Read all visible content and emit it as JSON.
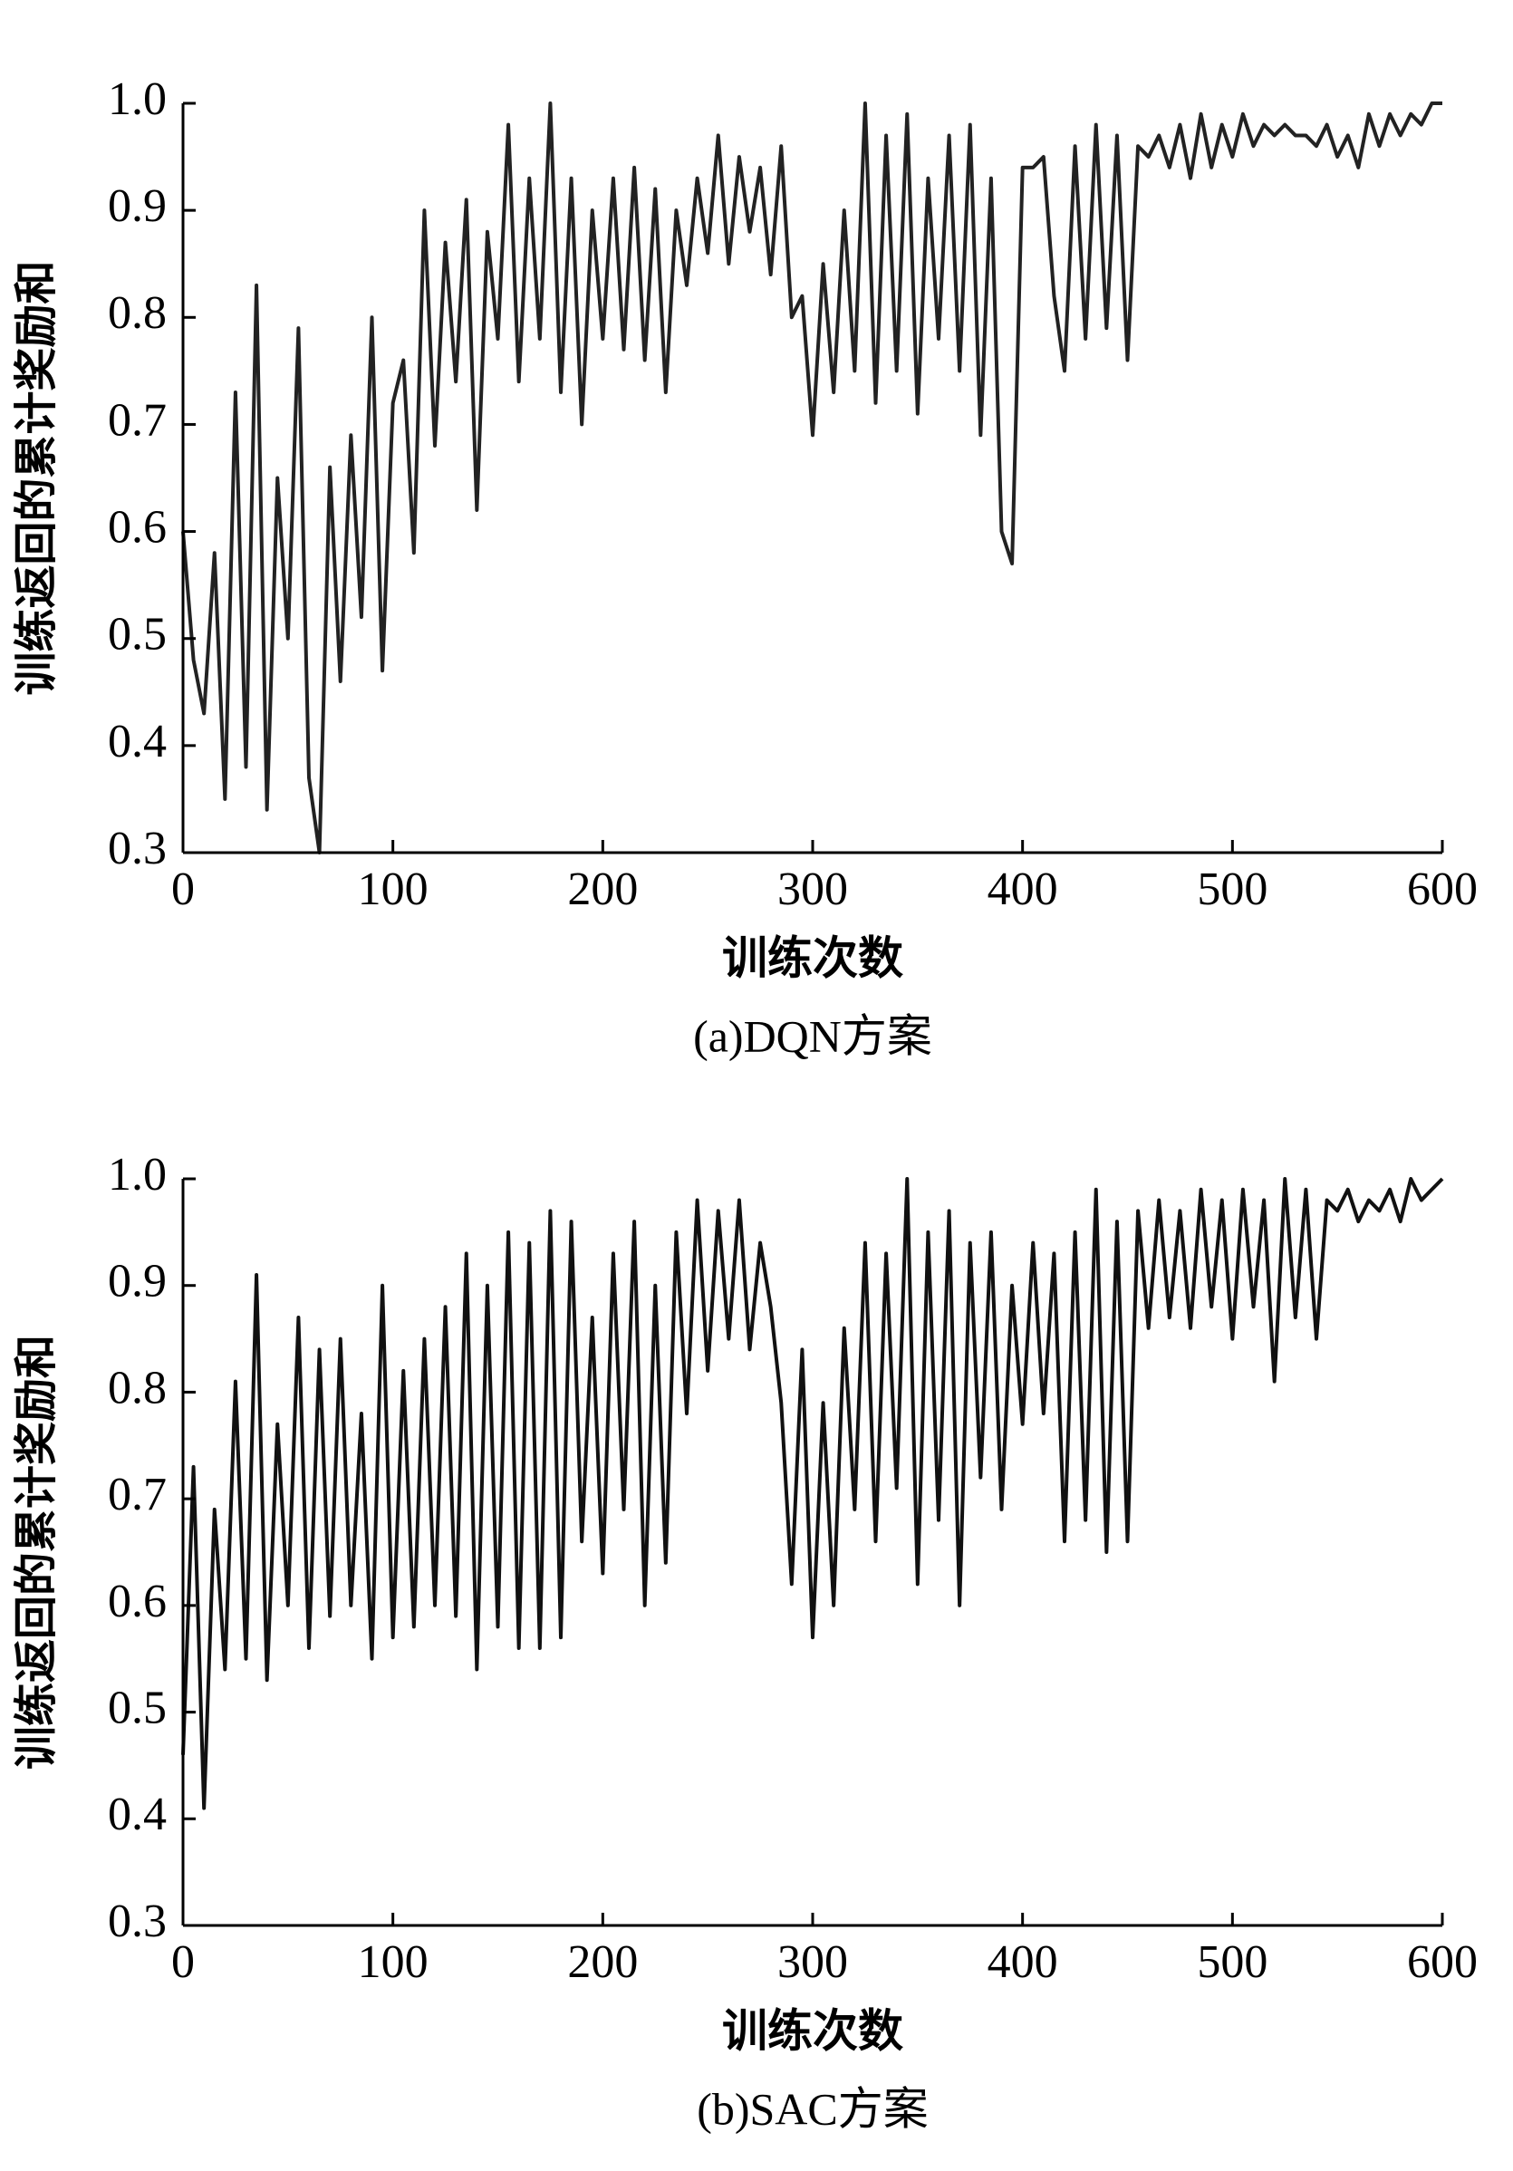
{
  "chart_data": [
    {
      "type": "line",
      "xlabel": "训练次数",
      "ylabel": "训练返回的累计奖励和",
      "caption": "(a)DQN方案",
      "color": "#222222",
      "xlim": [
        0,
        600
      ],
      "ylim": [
        0.3,
        1.0
      ],
      "xticks": [
        0,
        100,
        200,
        300,
        400,
        500,
        600
      ],
      "yticks": [
        0.3,
        0.4,
        0.5,
        0.6,
        0.7,
        0.8,
        0.9,
        {
          "value": 1.0,
          "label": "1.0"
        }
      ],
      "x": [
        0,
        5,
        10,
        15,
        20,
        25,
        30,
        35,
        40,
        45,
        50,
        55,
        60,
        65,
        70,
        75,
        80,
        85,
        90,
        95,
        100,
        105,
        110,
        115,
        120,
        125,
        130,
        135,
        140,
        145,
        150,
        155,
        160,
        165,
        170,
        175,
        180,
        185,
        190,
        195,
        200,
        205,
        210,
        215,
        220,
        225,
        230,
        235,
        240,
        245,
        250,
        255,
        260,
        265,
        270,
        275,
        280,
        285,
        290,
        295,
        300,
        305,
        310,
        315,
        320,
        325,
        330,
        335,
        340,
        345,
        350,
        355,
        360,
        365,
        370,
        375,
        380,
        385,
        390,
        395,
        400,
        405,
        410,
        415,
        420,
        425,
        430,
        435,
        440,
        445,
        450,
        455,
        460,
        465,
        470,
        475,
        480,
        485,
        490,
        495,
        500,
        505,
        510,
        515,
        520,
        525,
        530,
        535,
        540,
        545,
        550,
        555,
        560,
        565,
        570,
        575,
        580,
        585,
        590,
        595,
        600
      ],
      "values": [
        0.6,
        0.48,
        0.43,
        0.58,
        0.35,
        0.73,
        0.38,
        0.83,
        0.34,
        0.65,
        0.5,
        0.79,
        0.37,
        0.3,
        0.66,
        0.46,
        0.69,
        0.52,
        0.8,
        0.47,
        0.72,
        0.76,
        0.58,
        0.9,
        0.68,
        0.87,
        0.74,
        0.91,
        0.62,
        0.88,
        0.78,
        0.98,
        0.74,
        0.93,
        0.78,
        1.0,
        0.73,
        0.93,
        0.7,
        0.9,
        0.78,
        0.93,
        0.77,
        0.94,
        0.76,
        0.92,
        0.73,
        0.9,
        0.83,
        0.93,
        0.86,
        0.97,
        0.85,
        0.95,
        0.88,
        0.94,
        0.84,
        0.96,
        0.8,
        0.82,
        0.69,
        0.85,
        0.73,
        0.9,
        0.75,
        1.0,
        0.72,
        0.97,
        0.75,
        0.99,
        0.71,
        0.93,
        0.78,
        0.97,
        0.75,
        0.98,
        0.69,
        0.93,
        0.6,
        0.57,
        0.94,
        0.94,
        0.95,
        0.82,
        0.75,
        0.96,
        0.78,
        0.98,
        0.79,
        0.97,
        0.76,
        0.96,
        0.95,
        0.97,
        0.94,
        0.98,
        0.93,
        0.99,
        0.94,
        0.98,
        0.95,
        0.99,
        0.96,
        0.98,
        0.97,
        0.98,
        0.97,
        0.97,
        0.96,
        0.98,
        0.95,
        0.97,
        0.94,
        0.99,
        0.96,
        0.99,
        0.97,
        0.99,
        0.98,
        1.0,
        1.0
      ]
    },
    {
      "type": "line",
      "xlabel": "训练次数",
      "ylabel": "训练返回的累计奖励和",
      "caption": "(b)SAC方案",
      "color": "#111111",
      "xlim": [
        0,
        600
      ],
      "ylim": [
        0.3,
        1.0
      ],
      "xticks": [
        0,
        100,
        200,
        300,
        400,
        500,
        600
      ],
      "yticks": [
        0.3,
        0.4,
        0.5,
        0.6,
        0.7,
        0.8,
        0.9,
        {
          "value": 1.0,
          "label": "1.0"
        }
      ],
      "x": [
        0,
        5,
        10,
        15,
        20,
        25,
        30,
        35,
        40,
        45,
        50,
        55,
        60,
        65,
        70,
        75,
        80,
        85,
        90,
        95,
        100,
        105,
        110,
        115,
        120,
        125,
        130,
        135,
        140,
        145,
        150,
        155,
        160,
        165,
        170,
        175,
        180,
        185,
        190,
        195,
        200,
        205,
        210,
        215,
        220,
        225,
        230,
        235,
        240,
        245,
        250,
        255,
        260,
        265,
        270,
        275,
        280,
        285,
        290,
        295,
        300,
        305,
        310,
        315,
        320,
        325,
        330,
        335,
        340,
        345,
        350,
        355,
        360,
        365,
        370,
        375,
        380,
        385,
        390,
        395,
        400,
        405,
        410,
        415,
        420,
        425,
        430,
        435,
        440,
        445,
        450,
        455,
        460,
        465,
        470,
        475,
        480,
        485,
        490,
        495,
        500,
        505,
        510,
        515,
        520,
        525,
        530,
        535,
        540,
        545,
        550,
        555,
        560,
        565,
        570,
        575,
        580,
        585,
        590,
        595,
        600
      ],
      "values": [
        0.46,
        0.73,
        0.41,
        0.69,
        0.54,
        0.81,
        0.55,
        0.91,
        0.53,
        0.77,
        0.6,
        0.87,
        0.56,
        0.84,
        0.59,
        0.85,
        0.6,
        0.78,
        0.55,
        0.9,
        0.57,
        0.82,
        0.58,
        0.85,
        0.6,
        0.88,
        0.59,
        0.93,
        0.54,
        0.9,
        0.58,
        0.95,
        0.56,
        0.94,
        0.56,
        0.97,
        0.57,
        0.96,
        0.66,
        0.87,
        0.63,
        0.93,
        0.69,
        0.96,
        0.6,
        0.9,
        0.64,
        0.95,
        0.78,
        0.98,
        0.82,
        0.97,
        0.85,
        0.98,
        0.84,
        0.94,
        0.88,
        0.79,
        0.62,
        0.84,
        0.57,
        0.79,
        0.6,
        0.86,
        0.69,
        0.94,
        0.66,
        0.93,
        0.71,
        1.0,
        0.62,
        0.95,
        0.68,
        0.97,
        0.6,
        0.94,
        0.72,
        0.95,
        0.69,
        0.9,
        0.77,
        0.94,
        0.78,
        0.93,
        0.66,
        0.95,
        0.68,
        0.99,
        0.65,
        0.96,
        0.66,
        0.97,
        0.86,
        0.98,
        0.87,
        0.97,
        0.86,
        0.99,
        0.88,
        0.98,
        0.85,
        0.99,
        0.88,
        0.98,
        0.81,
        1.0,
        0.87,
        0.99,
        0.85,
        0.98,
        0.97,
        0.99,
        0.96,
        0.98,
        0.97,
        0.99,
        0.96,
        1.0,
        0.98,
        0.99,
        1.0
      ]
    }
  ]
}
